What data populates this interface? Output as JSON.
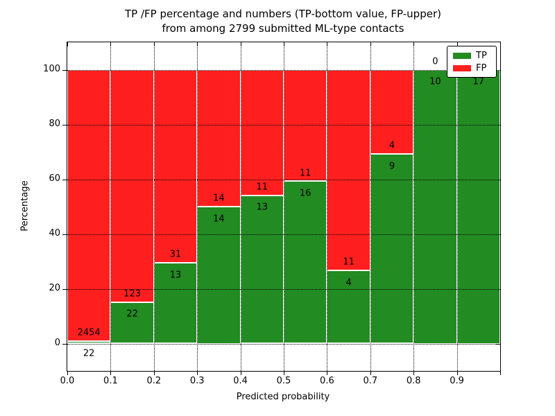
{
  "title": {
    "line1": "TP /FP percentage and numbers (TP-bottom value, FP-upper)",
    "line2": "from among 2799 submitted ML-type contacts"
  },
  "axes": {
    "xlabel": "Predicted probability",
    "ylabel": "Percentage"
  },
  "legend": {
    "items": [
      {
        "label": "TP",
        "color": "#228b22"
      },
      {
        "label": "FP",
        "color": "#ff1f1f"
      }
    ],
    "position": "upper right"
  },
  "chart_data": {
    "type": "bar",
    "stacked": true,
    "title": "TP /FP percentage and numbers (TP-bottom value, FP-upper) from among 2799 submitted ML-type contacts",
    "xlabel": "Predicted probability",
    "ylabel": "Percentage",
    "total_contacts": 2799,
    "bin_edges": [
      0.0,
      0.1,
      0.2,
      0.3,
      0.4,
      0.5,
      0.6,
      0.7,
      0.8,
      0.9,
      1.0
    ],
    "x_tick_labels": [
      "0.0",
      "0.1",
      "0.2",
      "0.3",
      "0.4",
      "0.5",
      "0.6",
      "0.7",
      "0.8",
      "0.9"
    ],
    "y_ticks": [
      0,
      20,
      40,
      60,
      80,
      100
    ],
    "ylim": [
      -10,
      110
    ],
    "xlim": [
      0.0,
      1.0
    ],
    "grid": true,
    "grid_style": "dotted",
    "series": [
      {
        "name": "TP",
        "color": "#228b22",
        "counts": [
          22,
          22,
          13,
          14,
          13,
          16,
          4,
          9,
          10,
          17
        ]
      },
      {
        "name": "FP",
        "color": "#ff1f1f",
        "counts": [
          2454,
          123,
          31,
          14,
          11,
          11,
          11,
          4,
          0,
          0
        ]
      }
    ],
    "tp_percent": [
      0.89,
      15.17,
      29.55,
      50.0,
      54.17,
      59.26,
      26.67,
      69.23,
      100.0,
      100.0
    ],
    "bar_edge_color": "#ffffff"
  }
}
